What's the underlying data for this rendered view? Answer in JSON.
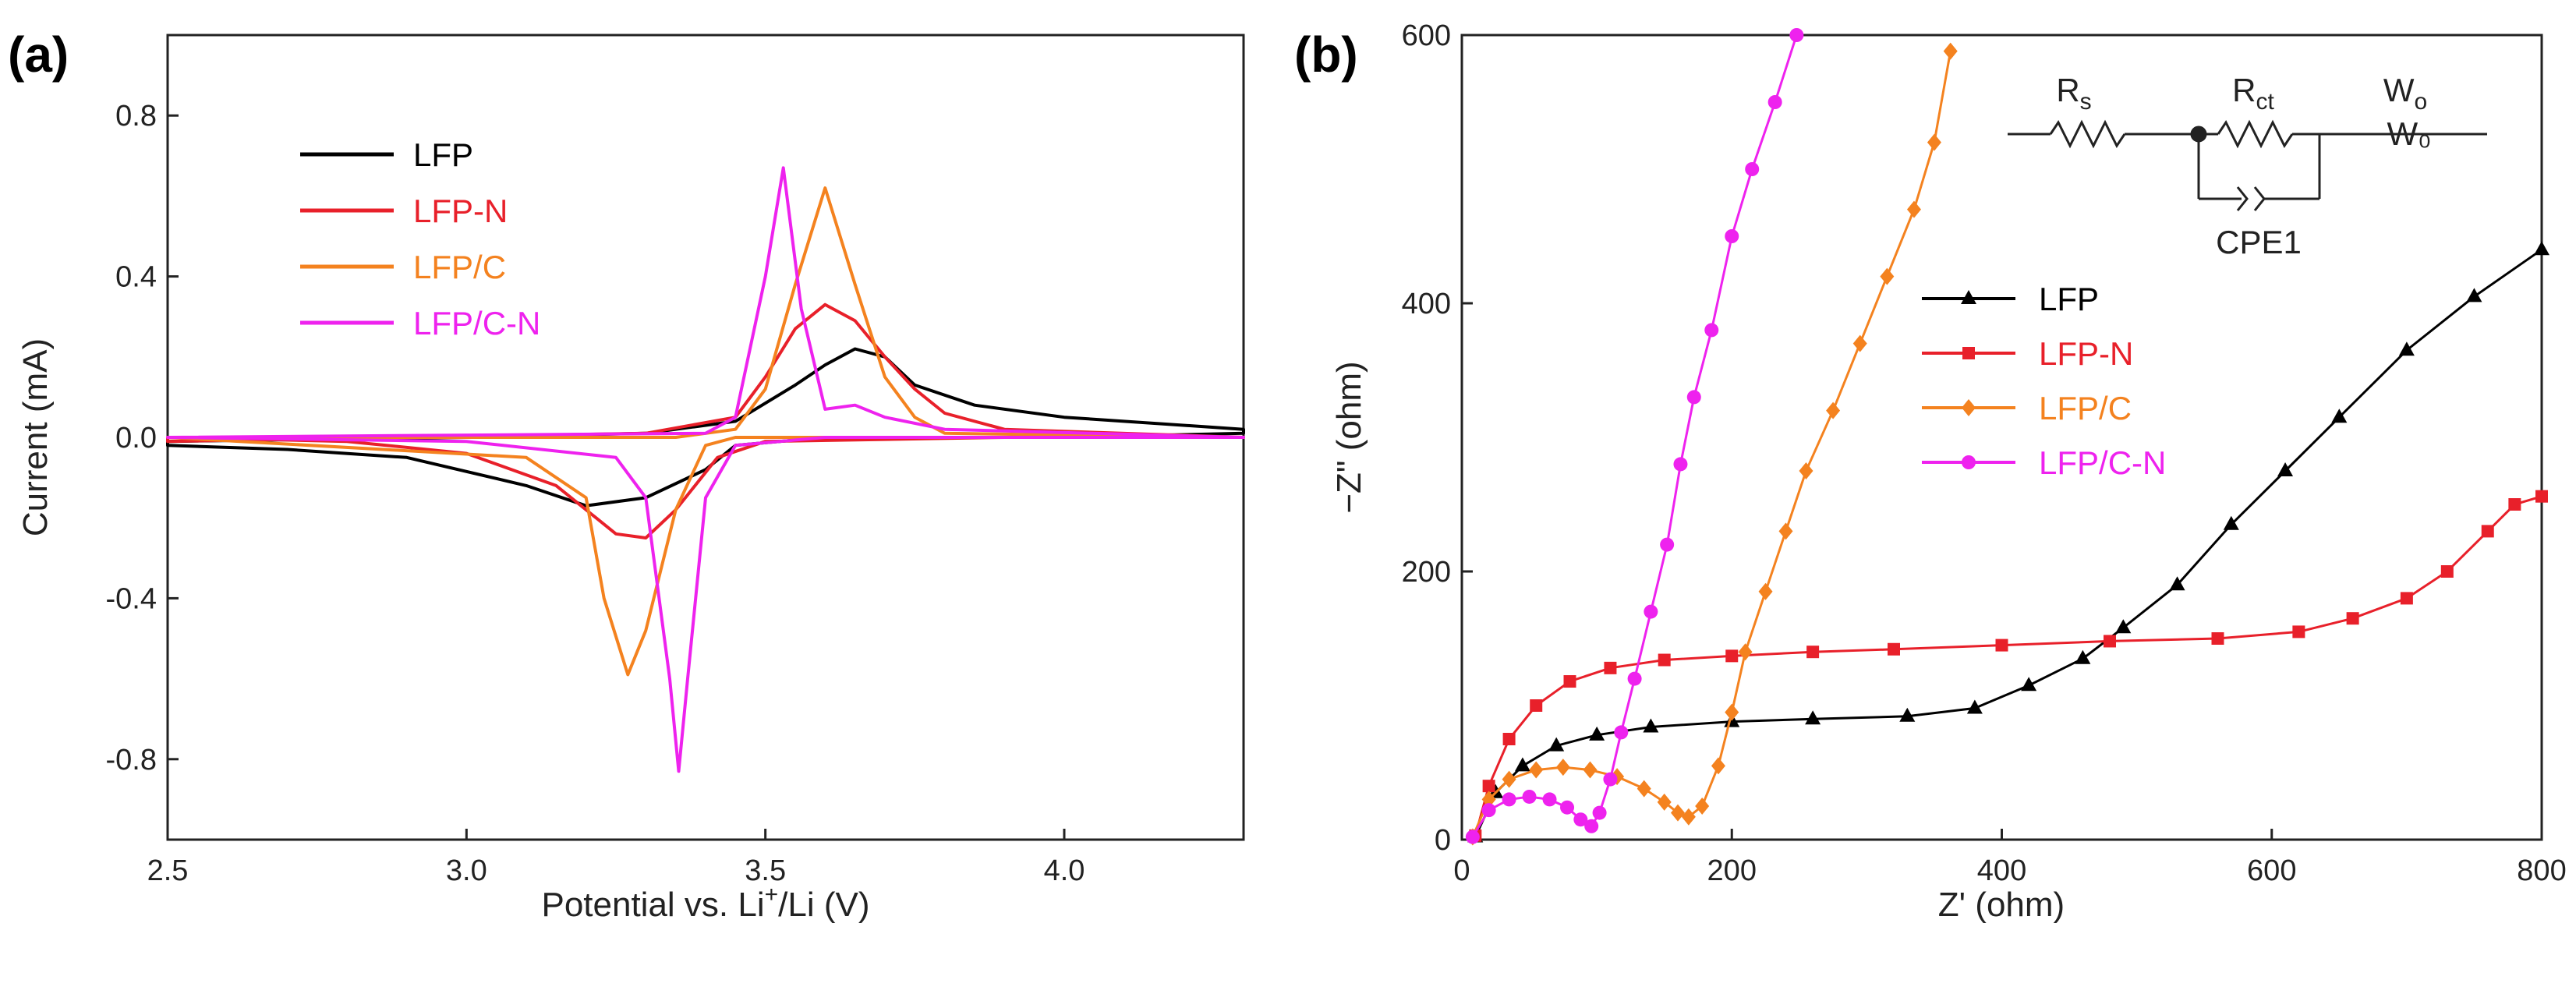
{
  "chart_data": [
    {
      "type": "line",
      "panel_label": "(a)",
      "xlabel_main": "Potential vs. Li",
      "xlabel_sup": "+",
      "xlabel_tail": "/Li (V)",
      "ylabel": "Current (mA)",
      "xlim": [
        2.5,
        4.3
      ],
      "ylim": [
        -1.0,
        1.0
      ],
      "xticks": [
        2.5,
        3.0,
        3.5,
        4.0
      ],
      "xtick_labels": [
        "2.5",
        "3.0",
        "3.5",
        "4.0"
      ],
      "yticks": [
        -0.8,
        -0.4,
        0.0,
        0.4,
        0.8
      ],
      "ytick_labels": [
        "-0.8",
        "-0.4",
        "0.0",
        "0.4",
        "0.8"
      ],
      "legend_position": "top-left",
      "series": [
        {
          "name": "LFP",
          "color": "#000000",
          "anodic": [
            [
              2.5,
              -0.01
            ],
            [
              3.0,
              0.0
            ],
            [
              3.3,
              0.01
            ],
            [
              3.45,
              0.04
            ],
            [
              3.55,
              0.13
            ],
            [
              3.6,
              0.18
            ],
            [
              3.65,
              0.22
            ],
            [
              3.7,
              0.2
            ],
            [
              3.75,
              0.13
            ],
            [
              3.85,
              0.08
            ],
            [
              4.0,
              0.05
            ],
            [
              4.3,
              0.02
            ]
          ],
          "cathodic": [
            [
              4.3,
              0.01
            ],
            [
              4.0,
              0.0
            ],
            [
              3.6,
              0.0
            ],
            [
              3.45,
              -0.02
            ],
            [
              3.4,
              -0.08
            ],
            [
              3.3,
              -0.15
            ],
            [
              3.2,
              -0.17
            ],
            [
              3.1,
              -0.12
            ],
            [
              2.9,
              -0.05
            ],
            [
              2.7,
              -0.03
            ],
            [
              2.5,
              -0.02
            ]
          ]
        },
        {
          "name": "LFP-N",
          "color": "#e8202a",
          "anodic": [
            [
              2.5,
              -0.01
            ],
            [
              3.3,
              0.01
            ],
            [
              3.45,
              0.05
            ],
            [
              3.5,
              0.15
            ],
            [
              3.55,
              0.27
            ],
            [
              3.6,
              0.33
            ],
            [
              3.65,
              0.29
            ],
            [
              3.7,
              0.2
            ],
            [
              3.75,
              0.12
            ],
            [
              3.8,
              0.06
            ],
            [
              3.9,
              0.02
            ],
            [
              4.3,
              0.0
            ]
          ],
          "cathodic": [
            [
              4.3,
              0.0
            ],
            [
              3.9,
              0.0
            ],
            [
              3.5,
              -0.01
            ],
            [
              3.42,
              -0.05
            ],
            [
              3.35,
              -0.18
            ],
            [
              3.3,
              -0.25
            ],
            [
              3.25,
              -0.24
            ],
            [
              3.15,
              -0.12
            ],
            [
              3.0,
              -0.04
            ],
            [
              2.8,
              -0.01
            ],
            [
              2.5,
              0.0
            ]
          ]
        },
        {
          "name": "LFP/C",
          "color": "#f4821f",
          "anodic": [
            [
              2.5,
              0.0
            ],
            [
              3.35,
              0.0
            ],
            [
              3.45,
              0.02
            ],
            [
              3.5,
              0.12
            ],
            [
              3.55,
              0.38
            ],
            [
              3.6,
              0.62
            ],
            [
              3.65,
              0.38
            ],
            [
              3.7,
              0.15
            ],
            [
              3.75,
              0.05
            ],
            [
              3.8,
              0.01
            ],
            [
              4.3,
              0.0
            ]
          ],
          "cathodic": [
            [
              4.3,
              0.0
            ],
            [
              3.8,
              0.0
            ],
            [
              3.45,
              0.0
            ],
            [
              3.4,
              -0.02
            ],
            [
              3.35,
              -0.18
            ],
            [
              3.3,
              -0.48
            ],
            [
              3.27,
              -0.59
            ],
            [
              3.23,
              -0.4
            ],
            [
              3.2,
              -0.15
            ],
            [
              3.1,
              -0.05
            ],
            [
              2.5,
              0.0
            ]
          ]
        },
        {
          "name": "LFP/C-N",
          "color": "#ee22ee",
          "anodic": [
            [
              2.5,
              0.0
            ],
            [
              3.4,
              0.01
            ],
            [
              3.45,
              0.05
            ],
            [
              3.5,
              0.4
            ],
            [
              3.53,
              0.67
            ],
            [
              3.56,
              0.32
            ],
            [
              3.6,
              0.07
            ],
            [
              3.65,
              0.08
            ],
            [
              3.7,
              0.05
            ],
            [
              3.8,
              0.02
            ],
            [
              4.3,
              0.0
            ]
          ],
          "cathodic": [
            [
              4.3,
              0.0
            ],
            [
              3.6,
              0.0
            ],
            [
              3.45,
              -0.02
            ],
            [
              3.4,
              -0.15
            ],
            [
              3.37,
              -0.6
            ],
            [
              3.355,
              -0.83
            ],
            [
              3.34,
              -0.6
            ],
            [
              3.3,
              -0.15
            ],
            [
              3.25,
              -0.05
            ],
            [
              3.0,
              -0.01
            ],
            [
              2.5,
              0.0
            ]
          ]
        }
      ]
    },
    {
      "type": "scatter",
      "panel_label": "(b)",
      "xlabel": "Z' (ohm)",
      "ylabel": "−Z\" (ohm)",
      "xlim": [
        0,
        800
      ],
      "ylim": [
        0,
        600
      ],
      "xticks": [
        0,
        200,
        400,
        600,
        800
      ],
      "xtick_labels": [
        "0",
        "200",
        "400",
        "600",
        "800"
      ],
      "yticks": [
        0,
        200,
        400,
        600
      ],
      "ytick_labels": [
        "0",
        "200",
        "400",
        "600"
      ],
      "legend_position": "center-right",
      "circuit": {
        "rs": "R",
        "rs_sub": "s",
        "rct": "R",
        "rct_sub": "ct",
        "wo": "W",
        "wo_sub": "o",
        "wo_box": "W₀",
        "cpe": "CPE1"
      },
      "series": [
        {
          "name": "LFP",
          "color": "#000000",
          "marker": "triangle",
          "points": [
            [
              10,
              2
            ],
            [
              25,
              35
            ],
            [
              45,
              55
            ],
            [
              70,
              70
            ],
            [
              100,
              78
            ],
            [
              140,
              84
            ],
            [
              200,
              88
            ],
            [
              260,
              90
            ],
            [
              330,
              92
            ],
            [
              380,
              98
            ],
            [
              420,
              115
            ],
            [
              460,
              135
            ],
            [
              490,
              158
            ],
            [
              530,
              190
            ],
            [
              570,
              235
            ],
            [
              610,
              275
            ],
            [
              650,
              315
            ],
            [
              700,
              365
            ],
            [
              750,
              405
            ],
            [
              800,
              440
            ]
          ]
        },
        {
          "name": "LFP-N",
          "color": "#e8202a",
          "marker": "square",
          "points": [
            [
              10,
              3
            ],
            [
              20,
              40
            ],
            [
              35,
              75
            ],
            [
              55,
              100
            ],
            [
              80,
              118
            ],
            [
              110,
              128
            ],
            [
              150,
              134
            ],
            [
              200,
              137
            ],
            [
              260,
              140
            ],
            [
              320,
              142
            ],
            [
              400,
              145
            ],
            [
              480,
              148
            ],
            [
              560,
              150
            ],
            [
              620,
              155
            ],
            [
              660,
              165
            ],
            [
              700,
              180
            ],
            [
              730,
              200
            ],
            [
              760,
              230
            ],
            [
              780,
              250
            ],
            [
              800,
              256
            ]
          ]
        },
        {
          "name": "LFP/C",
          "color": "#f4821f",
          "marker": "diamond",
          "points": [
            [
              8,
              2
            ],
            [
              20,
              30
            ],
            [
              35,
              45
            ],
            [
              55,
              52
            ],
            [
              75,
              54
            ],
            [
              95,
              52
            ],
            [
              115,
              47
            ],
            [
              135,
              38
            ],
            [
              150,
              28
            ],
            [
              160,
              20
            ],
            [
              168,
              17
            ],
            [
              178,
              25
            ],
            [
              190,
              55
            ],
            [
              200,
              95
            ],
            [
              210,
              140
            ],
            [
              225,
              185
            ],
            [
              240,
              230
            ],
            [
              255,
              275
            ],
            [
              275,
              320
            ],
            [
              295,
              370
            ],
            [
              315,
              420
            ],
            [
              335,
              470
            ],
            [
              350,
              520
            ],
            [
              362,
              588
            ]
          ]
        },
        {
          "name": "LFP/C-N",
          "color": "#ee22ee",
          "marker": "circle",
          "points": [
            [
              8,
              2
            ],
            [
              20,
              22
            ],
            [
              35,
              30
            ],
            [
              50,
              32
            ],
            [
              65,
              30
            ],
            [
              78,
              24
            ],
            [
              88,
              15
            ],
            [
              96,
              10
            ],
            [
              102,
              20
            ],
            [
              110,
              45
            ],
            [
              118,
              80
            ],
            [
              128,
              120
            ],
            [
              140,
              170
            ],
            [
              152,
              220
            ],
            [
              162,
              280
            ],
            [
              172,
              330
            ],
            [
              185,
              380
            ],
            [
              200,
              450
            ],
            [
              215,
              500
            ],
            [
              232,
              550
            ],
            [
              248,
              600
            ]
          ]
        }
      ]
    }
  ]
}
